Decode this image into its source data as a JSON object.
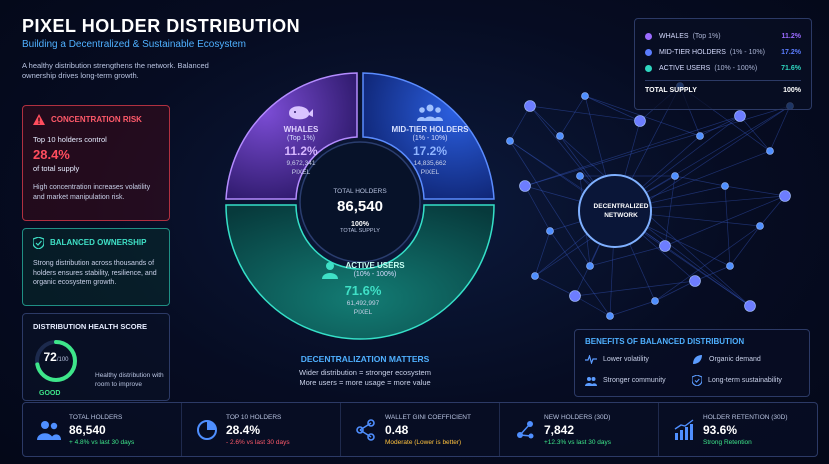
{
  "header": {
    "title": "PIXEL HOLDER DISTRIBUTION",
    "subtitle": "Building a Decentralized & Sustainable Ecosystem",
    "intro": "A healthy distribution strengthens the network. Balanced ownership drives long-term growth."
  },
  "risk_card": {
    "title": "CONCENTRATION RISK",
    "line1": "Top 10 holders control",
    "value": "28.4%",
    "line2": "of total supply",
    "desc": "High concentration increases volatility and market manipulation risk."
  },
  "balanced_card": {
    "title": "BALANCED OWNERSHIP",
    "desc": "Strong distribution across thousands of holders ensures stability, resilience, and organic ecosystem growth."
  },
  "health_card": {
    "title": "DISTRIBUTION HEALTH SCORE",
    "score": "72",
    "score_suffix": "/100",
    "score_fraction": 0.72,
    "label": "GOOD",
    "desc": "Healthy distribution with room to improve"
  },
  "donut": {
    "whales": {
      "name": "WHALES",
      "range": "(Top 1%)",
      "pct": "11.2%",
      "amount": "9,672,341",
      "unit": "PIXEL",
      "share": 11.2
    },
    "mid": {
      "name": "MID-TIER HOLDERS",
      "range": "(1% - 10%)",
      "pct": "17.2%",
      "amount": "14,835,662",
      "unit": "PIXEL",
      "share": 17.2
    },
    "active": {
      "name": "ACTIVE USERS",
      "range": "(10% - 100%)",
      "pct": "71.6%",
      "amount": "61,492,997",
      "unit": "PIXEL",
      "share": 71.6
    },
    "center_label": "TOTAL HOLDERS",
    "center_value": "86,540",
    "center_supply": "100%",
    "center_supply_label": "TOTAL SUPPLY"
  },
  "matters": {
    "title": "DECENTRALIZATION MATTERS",
    "line1": "Wider distribution = stronger ecosystem",
    "line2": "More users = more usage = more value"
  },
  "legend": {
    "items": [
      {
        "name": "WHALES",
        "range": "(Top 1%)",
        "value": "11.2%",
        "color": "#9b6bff"
      },
      {
        "name": "MID-TIER HOLDERS",
        "range": "(1% - 10%)",
        "value": "17.2%",
        "color": "#5b7dff"
      },
      {
        "name": "ACTIVE USERS",
        "range": "(10% - 100%)",
        "value": "71.6%",
        "color": "#2fd6c0"
      }
    ],
    "total_label": "TOTAL SUPPLY",
    "total_value": "100%"
  },
  "network": {
    "hub_label": "DECENTRALIZED NETWORK"
  },
  "benefits": {
    "title": "BENEFITS OF BALANCED DISTRIBUTION",
    "items": [
      "Lower volatility",
      "Organic demand",
      "Stronger community",
      "Long-term sustainability"
    ]
  },
  "stats": [
    {
      "label": "TOTAL HOLDERS",
      "value": "86,540",
      "change": "+ 4.8% vs last 30 days",
      "change_color": "green",
      "icon": "users-icon"
    },
    {
      "label": "TOP 10 HOLDERS",
      "value": "28.4%",
      "change": "- 2.6% vs last 30 days",
      "change_color": "red",
      "icon": "pie-chart-icon"
    },
    {
      "label": "WALLET GINI COEFFICIENT",
      "value": "0.48",
      "change": "Moderate (Lower is better)",
      "change_color": "amber",
      "icon": "network-icon"
    },
    {
      "label": "NEW HOLDERS (30D)",
      "value": "7,842",
      "change": "+12.3% vs last 30 days",
      "change_color": "green",
      "icon": "share-icon"
    },
    {
      "label": "HOLDER RETENTION (30D)",
      "value": "93.6%",
      "change": "Strong Retention",
      "change_color": "green",
      "icon": "growth-icon"
    }
  ],
  "colors": {
    "whales": "#9b6bff",
    "mid": "#3b6cff",
    "active": "#1fbfa8",
    "risk": "#ff4d5e",
    "good": "#3ee68a",
    "accent": "#4fb0ff"
  }
}
